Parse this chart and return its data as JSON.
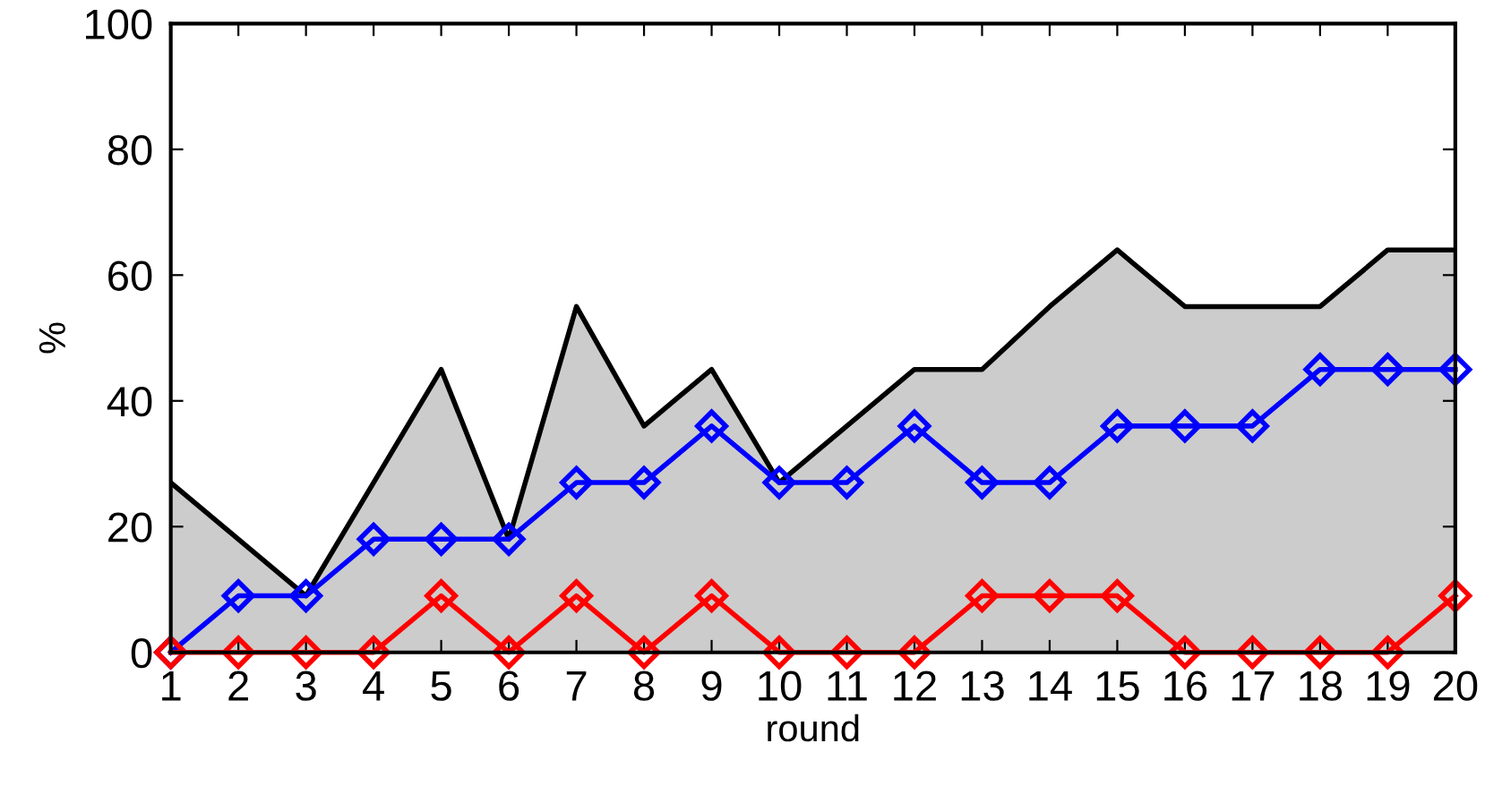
{
  "chart_data": {
    "type": "line",
    "xlabel": "round",
    "ylabel": "%",
    "x": [
      1,
      2,
      3,
      4,
      5,
      6,
      7,
      8,
      9,
      10,
      11,
      12,
      13,
      14,
      15,
      16,
      17,
      18,
      19,
      20
    ],
    "xlim": [
      1,
      20
    ],
    "xticks": [
      1,
      2,
      3,
      4,
      5,
      6,
      7,
      8,
      9,
      10,
      11,
      12,
      13,
      14,
      15,
      16,
      17,
      18,
      19,
      20
    ],
    "ylim": [
      0,
      100
    ],
    "yticks": [
      0,
      20,
      40,
      60,
      80,
      100
    ],
    "grid": false,
    "legend": false,
    "series": [
      {
        "type": "area",
        "color": "#cccccc",
        "values": [
          27,
          18,
          9,
          27,
          45,
          18,
          55,
          36,
          45,
          27,
          36,
          45,
          45,
          55,
          64,
          55,
          55,
          55,
          64,
          64
        ]
      },
      {
        "color": "#0000ff",
        "marker": "diamond",
        "values": [
          0,
          9,
          9,
          18,
          18,
          18,
          27,
          27,
          36,
          27,
          27,
          36,
          27,
          27,
          36,
          36,
          36,
          45,
          45,
          45
        ]
      },
      {
        "color": "#ff0000",
        "marker": "diamond",
        "values": [
          0,
          0,
          0,
          0,
          9,
          0,
          9,
          0,
          9,
          0,
          0,
          0,
          9,
          9,
          9,
          0,
          0,
          0,
          0,
          9
        ]
      }
    ]
  }
}
